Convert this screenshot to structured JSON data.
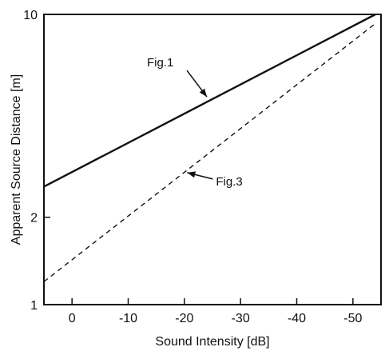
{
  "chart_data": {
    "type": "line",
    "xlabel": "Sound Intensity [dB]",
    "ylabel": "Apparent Source Distance [m]",
    "x_range": [
      5,
      -55
    ],
    "y_range": [
      1,
      10
    ],
    "y_scale": "log",
    "x_ticks": [
      0,
      -10,
      -20,
      -30,
      -40,
      -50
    ],
    "x_tick_labels": [
      "0",
      "-10",
      "-20",
      "-30",
      "-40",
      "-50"
    ],
    "y_ticks": [
      1,
      2,
      10
    ],
    "y_tick_labels": [
      "1",
      "2",
      "10"
    ],
    "grid": false,
    "legend": "none",
    "series": [
      {
        "style": "solid",
        "points": [
          [
            5,
            2.55
          ],
          [
            -54,
            10
          ]
        ]
      },
      {
        "style": "dashed",
        "points": [
          [
            5,
            1.2
          ],
          [
            -54,
            9.3
          ]
        ]
      }
    ],
    "annotations": [
      {
        "text": "Fig.1",
        "points_to": [
          -24,
          5.2
        ]
      },
      {
        "text": "Fig.3",
        "points_to": [
          -20.5,
          2.85
        ]
      }
    ]
  }
}
